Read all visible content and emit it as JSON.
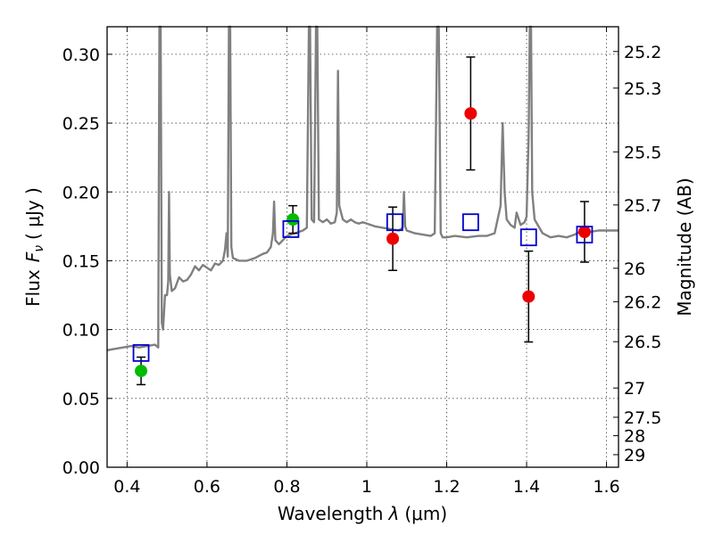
{
  "chart_data": {
    "type": "scatter",
    "xlabel": "Wavelength",
    "xlabel_symbol": "λ",
    "xlabel_unit": "(μm)",
    "ylabel": "Flux",
    "ylabel_symbol": "F",
    "ylabel_symbol_sub": "ν",
    "ylabel_unit": "( μJy )",
    "y2label": "Magnitude (AB)",
    "xlim": [
      0.35,
      1.63
    ],
    "ylim": [
      0.0,
      0.32
    ],
    "grid": true,
    "x_ticks": [
      0.4,
      0.6,
      0.8,
      1.0,
      1.2,
      1.4,
      1.6
    ],
    "x_tick_labels": [
      "0.4",
      "0.6",
      "0.8",
      "1",
      "1.2",
      "1.4",
      "1.6"
    ],
    "y_ticks": [
      0.0,
      0.05,
      0.1,
      0.15,
      0.2,
      0.25,
      0.3
    ],
    "y_tick_labels": [
      "0.00",
      "0.05",
      "0.10",
      "0.15",
      "0.20",
      "0.25",
      "0.30"
    ],
    "y2_ticks": [
      25.2,
      25.3,
      25.5,
      25.7,
      26,
      26.2,
      26.5,
      27,
      27.5,
      28,
      29
    ],
    "y2_tick_labels": [
      "25.2",
      "25.3",
      "25.5",
      "25.7",
      "26",
      "26.2",
      "26.5",
      "27",
      "27.5",
      "28",
      "29"
    ],
    "colors": {
      "sed_model": "#808080",
      "green_points": "#00bb00",
      "red_points": "#ee0000",
      "model_squares": "#0000cc",
      "error_bars": "#000000"
    },
    "series": [
      {
        "kind": "line",
        "points": [
          [
            0.35,
            0.085
          ],
          [
            0.37,
            0.086
          ],
          [
            0.39,
            0.087
          ],
          [
            0.41,
            0.088
          ],
          [
            0.43,
            0.087
          ],
          [
            0.45,
            0.088
          ],
          [
            0.47,
            0.089
          ],
          [
            0.478,
            0.087
          ],
          [
            0.481,
            0.32
          ],
          [
            0.484,
            0.32
          ],
          [
            0.487,
            0.105
          ],
          [
            0.49,
            0.1
          ],
          [
            0.495,
            0.125
          ],
          [
            0.5,
            0.125
          ],
          [
            0.503,
            0.135
          ],
          [
            0.505,
            0.2
          ],
          [
            0.507,
            0.14
          ],
          [
            0.512,
            0.128
          ],
          [
            0.52,
            0.13
          ],
          [
            0.53,
            0.138
          ],
          [
            0.54,
            0.135
          ],
          [
            0.55,
            0.136
          ],
          [
            0.56,
            0.14
          ],
          [
            0.57,
            0.146
          ],
          [
            0.58,
            0.143
          ],
          [
            0.59,
            0.147
          ],
          [
            0.6,
            0.145
          ],
          [
            0.61,
            0.143
          ],
          [
            0.62,
            0.148
          ],
          [
            0.63,
            0.147
          ],
          [
            0.64,
            0.15
          ],
          [
            0.645,
            0.158
          ],
          [
            0.649,
            0.17
          ],
          [
            0.652,
            0.153
          ],
          [
            0.655,
            0.32
          ],
          [
            0.658,
            0.32
          ],
          [
            0.661,
            0.16
          ],
          [
            0.665,
            0.152
          ],
          [
            0.68,
            0.15
          ],
          [
            0.7,
            0.15
          ],
          [
            0.72,
            0.152
          ],
          [
            0.74,
            0.155
          ],
          [
            0.75,
            0.156
          ],
          [
            0.76,
            0.16
          ],
          [
            0.765,
            0.17
          ],
          [
            0.768,
            0.193
          ],
          [
            0.771,
            0.165
          ],
          [
            0.78,
            0.162
          ],
          [
            0.79,
            0.165
          ],
          [
            0.8,
            0.168
          ],
          [
            0.82,
            0.17
          ],
          [
            0.84,
            0.172
          ],
          [
            0.85,
            0.174
          ],
          [
            0.855,
            0.32
          ],
          [
            0.858,
            0.32
          ],
          [
            0.862,
            0.18
          ],
          [
            0.868,
            0.178
          ],
          [
            0.873,
            0.32
          ],
          [
            0.876,
            0.32
          ],
          [
            0.88,
            0.18
          ],
          [
            0.89,
            0.178
          ],
          [
            0.9,
            0.18
          ],
          [
            0.91,
            0.177
          ],
          [
            0.92,
            0.178
          ],
          [
            0.925,
            0.185
          ],
          [
            0.928,
            0.288
          ],
          [
            0.931,
            0.19
          ],
          [
            0.94,
            0.18
          ],
          [
            0.95,
            0.178
          ],
          [
            0.96,
            0.18
          ],
          [
            0.97,
            0.178
          ],
          [
            0.98,
            0.177
          ],
          [
            0.99,
            0.178
          ],
          [
            1.0,
            0.177
          ],
          [
            1.02,
            0.175
          ],
          [
            1.04,
            0.174
          ],
          [
            1.06,
            0.173
          ],
          [
            1.08,
            0.172
          ],
          [
            1.09,
            0.174
          ],
          [
            1.093,
            0.2
          ],
          [
            1.096,
            0.175
          ],
          [
            1.1,
            0.172
          ],
          [
            1.12,
            0.17
          ],
          [
            1.14,
            0.169
          ],
          [
            1.16,
            0.168
          ],
          [
            1.17,
            0.17
          ],
          [
            1.176,
            0.32
          ],
          [
            1.18,
            0.32
          ],
          [
            1.185,
            0.17
          ],
          [
            1.19,
            0.167
          ],
          [
            1.2,
            0.167
          ],
          [
            1.22,
            0.168
          ],
          [
            1.25,
            0.167
          ],
          [
            1.28,
            0.168
          ],
          [
            1.3,
            0.168
          ],
          [
            1.32,
            0.17
          ],
          [
            1.335,
            0.19
          ],
          [
            1.34,
            0.25
          ],
          [
            1.345,
            0.2
          ],
          [
            1.35,
            0.18
          ],
          [
            1.36,
            0.176
          ],
          [
            1.37,
            0.174
          ],
          [
            1.375,
            0.185
          ],
          [
            1.385,
            0.176
          ],
          [
            1.395,
            0.178
          ],
          [
            1.4,
            0.182
          ],
          [
            1.405,
            0.24
          ],
          [
            1.408,
            0.32
          ],
          [
            1.411,
            0.32
          ],
          [
            1.414,
            0.2
          ],
          [
            1.42,
            0.18
          ],
          [
            1.44,
            0.17
          ],
          [
            1.46,
            0.167
          ],
          [
            1.48,
            0.168
          ],
          [
            1.5,
            0.167
          ],
          [
            1.52,
            0.169
          ],
          [
            1.54,
            0.172
          ],
          [
            1.56,
            0.171
          ],
          [
            1.58,
            0.172
          ],
          [
            1.6,
            0.172
          ],
          [
            1.63,
            0.172
          ]
        ]
      },
      {
        "kind": "points",
        "marker": "circle",
        "color_key": "green_points",
        "points": [
          {
            "x": 0.435,
            "y": 0.07,
            "err": 0.01
          },
          {
            "x": 0.815,
            "y": 0.18,
            "err": 0.01
          }
        ]
      },
      {
        "kind": "points",
        "marker": "circle",
        "color_key": "red_points",
        "points": [
          {
            "x": 1.065,
            "y": 0.166,
            "err": 0.023
          },
          {
            "x": 1.26,
            "y": 0.257,
            "err": 0.041
          },
          {
            "x": 1.405,
            "y": 0.124,
            "err": 0.033
          },
          {
            "x": 1.545,
            "y": 0.171,
            "err": 0.022
          }
        ]
      },
      {
        "kind": "points",
        "marker": "open-square",
        "color_key": "model_squares",
        "points": [
          {
            "x": 0.435,
            "y": 0.083
          },
          {
            "x": 0.81,
            "y": 0.173
          },
          {
            "x": 1.07,
            "y": 0.178
          },
          {
            "x": 1.26,
            "y": 0.178
          },
          {
            "x": 1.405,
            "y": 0.167
          },
          {
            "x": 1.545,
            "y": 0.169
          }
        ]
      }
    ]
  }
}
